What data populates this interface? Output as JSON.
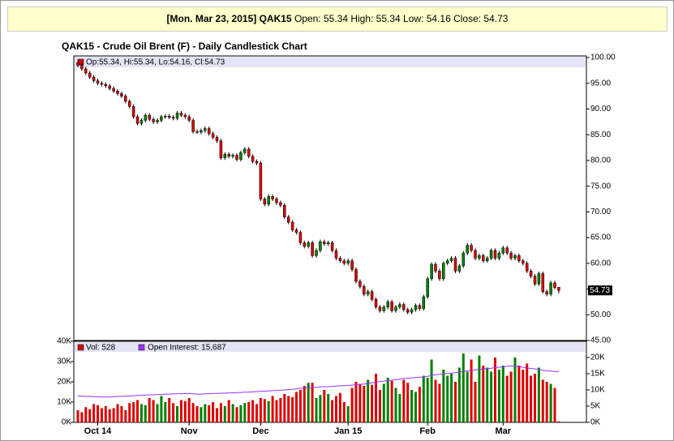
{
  "header": {
    "date": "[Mon. Mar 23, 2015]",
    "symbol": "QAK15",
    "quote": "Open: 55.34 High: 55.34 Low: 54.16 Close: 54.73"
  },
  "chart_data": {
    "type": "candlestick",
    "title": "QAK15 - Crude Oil Brent (F) - Daily Candlestick Chart",
    "price_legend": "Op:55.34, Hi:55.34, Lo:54.16, Cl:54.73",
    "volume_legend": "Vol: 528",
    "oi_legend": "Open Interest: 15,687",
    "up_color": "#008000",
    "down_color": "#dd0000",
    "oi_color": "#9933ff",
    "legend_color": "#dd0000",
    "categories": [
      null,
      null,
      null,
      null,
      null,
      "Oct 14",
      null,
      null,
      null,
      null,
      null,
      null,
      null,
      null,
      null,
      null,
      null,
      null,
      null,
      null,
      null,
      null,
      null,
      null,
      null,
      null,
      null,
      null,
      "Nov",
      null,
      null,
      null,
      null,
      null,
      null,
      null,
      null,
      null,
      null,
      null,
      null,
      null,
      null,
      null,
      null,
      null,
      "Dec",
      null,
      null,
      null,
      null,
      null,
      null,
      null,
      null,
      null,
      null,
      null,
      null,
      null,
      null,
      null,
      null,
      null,
      null,
      null,
      null,
      null,
      "Jan 15",
      null,
      null,
      null,
      null,
      null,
      null,
      null,
      null,
      null,
      null,
      null,
      null,
      null,
      null,
      null,
      null,
      null,
      null,
      null,
      "Feb",
      null,
      null,
      null,
      null,
      null,
      null,
      null,
      null,
      null,
      null,
      null,
      null,
      null,
      null,
      null,
      null,
      null,
      null,
      "Mar",
      null,
      null,
      null,
      null,
      null,
      null,
      null,
      null,
      null,
      null,
      null,
      null,
      null,
      null
    ],
    "open": [
      99.0,
      98.5,
      97.8,
      97.0,
      96.2,
      95.5,
      95.0,
      94.8,
      94.5,
      94.0,
      93.5,
      93.0,
      92.5,
      91.5,
      90.5,
      88.5,
      87.2,
      87.8,
      88.8,
      88.0,
      87.5,
      87.8,
      88.5,
      88.6,
      88.4,
      88.2,
      89.2,
      88.8,
      88.5,
      87.8,
      85.6,
      85.5,
      85.8,
      86.2,
      85.2,
      84.5,
      83.8,
      80.5,
      81.2,
      80.8,
      81.0,
      80.2,
      81.5,
      82.2,
      80.8,
      79.8,
      79.5,
      72.5,
      71.5,
      73.0,
      72.5,
      71.8,
      71.3,
      69.0,
      68.0,
      66.5,
      66.0,
      64.0,
      63.3,
      64.0,
      61.5,
      62.5,
      64.2,
      63.8,
      64.0,
      62.5,
      61.0,
      60.5,
      60.0,
      60.5,
      58.8,
      56.5,
      55.5,
      54.0,
      54.5,
      53.0,
      51.5,
      50.8,
      51.5,
      52.5,
      50.8,
      51.5,
      52.0,
      51.0,
      50.5,
      51.0,
      51.8,
      51.2,
      53.5,
      57.0,
      59.8,
      58.5,
      57.0,
      60.0,
      60.5,
      61.0,
      58.5,
      59.5,
      62.0,
      63.5,
      62.5,
      61.0,
      61.5,
      60.5,
      61.0,
      62.5,
      61.0,
      62.0,
      63.0,
      62.0,
      61.0,
      61.5,
      60.5,
      60.0,
      58.5,
      57.5,
      56.0,
      58.0,
      54.5,
      54.0,
      56.2,
      55.34
    ],
    "high": [
      99.4,
      98.9,
      98.2,
      97.4,
      96.6,
      95.9,
      95.4,
      95.2,
      94.9,
      94.4,
      93.9,
      93.4,
      92.9,
      91.9,
      90.9,
      88.9,
      88.2,
      89.2,
      89.2,
      88.4,
      88.2,
      88.9,
      89.0,
      89.0,
      88.8,
      89.6,
      89.6,
      89.2,
      88.9,
      88.2,
      86.0,
      86.2,
      86.6,
      86.6,
      85.6,
      84.9,
      84.2,
      81.6,
      81.6,
      81.4,
      81.4,
      81.9,
      82.6,
      82.6,
      81.2,
      80.2,
      79.9,
      72.9,
      73.4,
      73.4,
      72.9,
      72.2,
      71.7,
      69.4,
      68.4,
      66.9,
      66.4,
      64.4,
      64.4,
      64.4,
      62.9,
      64.6,
      64.6,
      64.4,
      64.4,
      62.9,
      61.4,
      60.9,
      60.9,
      60.9,
      59.2,
      56.9,
      55.9,
      54.9,
      54.9,
      53.4,
      51.9,
      51.9,
      52.9,
      52.9,
      51.9,
      52.4,
      52.4,
      51.4,
      51.4,
      52.2,
      52.2,
      53.9,
      57.4,
      60.2,
      60.2,
      58.9,
      60.4,
      60.9,
      61.4,
      61.4,
      59.9,
      62.4,
      63.9,
      63.9,
      62.9,
      61.9,
      61.9,
      61.4,
      62.9,
      62.9,
      62.4,
      63.4,
      63.4,
      62.4,
      61.9,
      61.9,
      60.9,
      60.4,
      58.9,
      57.9,
      58.4,
      58.4,
      54.9,
      56.6,
      56.6,
      55.34
    ],
    "low": [
      98.1,
      97.4,
      96.6,
      95.8,
      95.1,
      94.6,
      94.4,
      94.1,
      93.6,
      93.1,
      92.6,
      92.1,
      91.1,
      90.1,
      88.1,
      86.8,
      86.8,
      87.4,
      87.6,
      87.1,
      87.1,
      87.4,
      88.1,
      88.0,
      87.8,
      87.8,
      88.4,
      88.1,
      87.4,
      85.2,
      85.1,
      85.1,
      85.4,
      84.8,
      84.1,
      83.4,
      80.1,
      80.1,
      80.4,
      80.4,
      79.8,
      79.8,
      81.1,
      80.4,
      79.4,
      79.1,
      72.1,
      71.1,
      71.1,
      72.1,
      71.4,
      70.9,
      68.6,
      67.6,
      66.1,
      65.6,
      63.6,
      62.9,
      62.9,
      61.1,
      61.1,
      62.1,
      63.4,
      63.4,
      62.1,
      60.6,
      60.1,
      59.6,
      59.6,
      58.4,
      56.1,
      55.1,
      53.6,
      53.6,
      52.6,
      51.1,
      50.4,
      50.4,
      51.1,
      50.4,
      50.4,
      51.1,
      50.6,
      50.1,
      50.1,
      50.6,
      50.8,
      50.8,
      53.1,
      56.6,
      58.1,
      56.6,
      56.6,
      59.6,
      60.1,
      58.1,
      58.1,
      59.1,
      61.6,
      62.1,
      60.6,
      60.6,
      60.1,
      60.1,
      60.6,
      60.6,
      60.6,
      61.6,
      61.6,
      60.6,
      60.6,
      60.1,
      59.6,
      58.1,
      57.1,
      55.6,
      55.6,
      54.1,
      53.6,
      53.6,
      54.9,
      54.16
    ],
    "close": [
      98.5,
      97.8,
      97.0,
      96.2,
      95.5,
      95.0,
      94.8,
      94.5,
      94.0,
      93.5,
      93.0,
      92.5,
      91.5,
      90.5,
      88.5,
      87.2,
      87.8,
      88.8,
      88.0,
      87.5,
      87.8,
      88.5,
      88.6,
      88.4,
      88.2,
      89.2,
      88.8,
      88.5,
      87.8,
      85.6,
      85.5,
      85.8,
      86.2,
      85.2,
      84.5,
      83.8,
      80.5,
      81.2,
      80.8,
      81.0,
      80.2,
      81.5,
      82.2,
      80.8,
      79.8,
      79.5,
      72.5,
      71.5,
      73.0,
      72.5,
      71.8,
      71.3,
      69.0,
      68.0,
      66.5,
      66.0,
      64.0,
      63.3,
      64.0,
      61.5,
      62.5,
      64.2,
      63.8,
      64.0,
      62.5,
      61.0,
      60.5,
      60.0,
      60.5,
      58.8,
      56.5,
      55.5,
      54.0,
      54.5,
      53.0,
      51.5,
      50.8,
      51.5,
      52.5,
      50.8,
      51.5,
      52.0,
      51.0,
      50.5,
      51.0,
      51.8,
      51.2,
      53.5,
      57.0,
      59.8,
      58.5,
      57.0,
      60.0,
      60.5,
      61.0,
      58.5,
      59.5,
      62.0,
      63.5,
      62.5,
      61.0,
      61.5,
      60.5,
      61.0,
      62.5,
      61.0,
      62.0,
      63.0,
      62.0,
      61.0,
      61.5,
      60.5,
      60.0,
      58.5,
      57.5,
      56.0,
      58.0,
      54.5,
      54.0,
      56.2,
      55.3,
      54.73
    ],
    "volume": [
      6000,
      5000,
      7500,
      6500,
      9000,
      8500,
      7000,
      8000,
      6500,
      7000,
      9000,
      8000,
      6000,
      9500,
      10000,
      11000,
      9000,
      8500,
      12000,
      11000,
      9000,
      13000,
      10000,
      12000,
      9500,
      8000,
      11000,
      10500,
      12000,
      9500,
      8000,
      7500,
      9000,
      8500,
      10000,
      7000,
      9500,
      8000,
      11000,
      9000,
      7500,
      8500,
      9500,
      10000,
      11000,
      9000,
      12000,
      11500,
      10500,
      13000,
      11000,
      12000,
      14000,
      13000,
      12500,
      15000,
      16000,
      18000,
      19500,
      19500,
      12000,
      13500,
      16000,
      14000,
      11000,
      13000,
      14500,
      10000,
      8000,
      17000,
      20000,
      19000,
      18000,
      21000,
      18500,
      24000,
      16000,
      19000,
      22000,
      20500,
      17000,
      14000,
      21000,
      19500,
      16000,
      15000,
      17500,
      23000,
      22000,
      31000,
      21000,
      19000,
      26000,
      23000,
      24000,
      20000,
      27000,
      34000,
      25000,
      31000,
      20000,
      33000,
      28000,
      27000,
      25000,
      32000,
      26000,
      28000,
      23000,
      25000,
      32000,
      28000,
      26000,
      29000,
      23000,
      24000,
      27000,
      21000,
      20000,
      19000,
      17000,
      528
    ],
    "open_interest": [
      8200,
      8100,
      8000,
      8000,
      7900,
      7900,
      7800,
      7800,
      7800,
      7900,
      8000,
      8000,
      8100,
      8100,
      8200,
      8300,
      8300,
      8400,
      8500,
      8500,
      8600,
      8600,
      8700,
      8700,
      8800,
      8800,
      8800,
      8900,
      8900,
      8800,
      8700,
      8700,
      8800,
      8800,
      8900,
      8900,
      9000,
      9000,
      9100,
      9100,
      9200,
      9200,
      9300,
      9300,
      9400,
      9500,
      9600,
      9600,
      9700,
      9800,
      9800,
      9900,
      10000,
      10100,
      10200,
      10300,
      10500,
      10600,
      10700,
      10800,
      10800,
      10900,
      11000,
      11000,
      11100,
      11200,
      11300,
      11300,
      11400,
      11500,
      11600,
      11700,
      11800,
      12000,
      12200,
      12400,
      12600,
      12700,
      12900,
      13000,
      13200,
      13300,
      13500,
      13600,
      13700,
      13800,
      13900,
      14000,
      14200,
      14500,
      14700,
      14800,
      15000,
      15100,
      15200,
      15300,
      15500,
      15700,
      15900,
      16000,
      16200,
      16300,
      16500,
      16600,
      16700,
      16900,
      17000,
      17100,
      17300,
      17400,
      17300,
      17200,
      17000,
      16800,
      16600,
      16500,
      16300,
      16100,
      15900,
      15800,
      15700,
      15687
    ],
    "ylim": [
      45,
      100
    ],
    "yticks": [
      {
        "value": 45,
        "label": "45.00"
      },
      {
        "value": 50,
        "label": "50.00"
      },
      {
        "value": 55,
        "label": "55.00"
      },
      {
        "value": 60,
        "label": "60.00"
      },
      {
        "value": 65,
        "label": "65.00"
      },
      {
        "value": 70,
        "label": "70.00"
      },
      {
        "value": 75,
        "label": "75.00"
      },
      {
        "value": 80,
        "label": "80.00"
      },
      {
        "value": 85,
        "label": "85.00"
      },
      {
        "value": 90,
        "label": "90.00"
      },
      {
        "value": 95,
        "label": "95.00"
      },
      {
        "value": 100,
        "label": "100.00"
      }
    ],
    "volume_ylim": [
      0,
      40000
    ],
    "volume_ticks": [
      {
        "value": 0,
        "label": "0K"
      },
      {
        "value": 10000,
        "label": "10K"
      },
      {
        "value": 20000,
        "label": "20K"
      },
      {
        "value": 30000,
        "label": "30K"
      },
      {
        "value": 40000,
        "label": "40K"
      }
    ],
    "y2lim": [
      0,
      25000
    ],
    "y2ticks": [
      {
        "value": 0,
        "label": "0K"
      },
      {
        "value": 5000,
        "label": "5K"
      },
      {
        "value": 10000,
        "label": "10K"
      },
      {
        "value": 15000,
        "label": "15K"
      },
      {
        "value": 20000,
        "label": "20K"
      }
    ],
    "grid": false
  }
}
